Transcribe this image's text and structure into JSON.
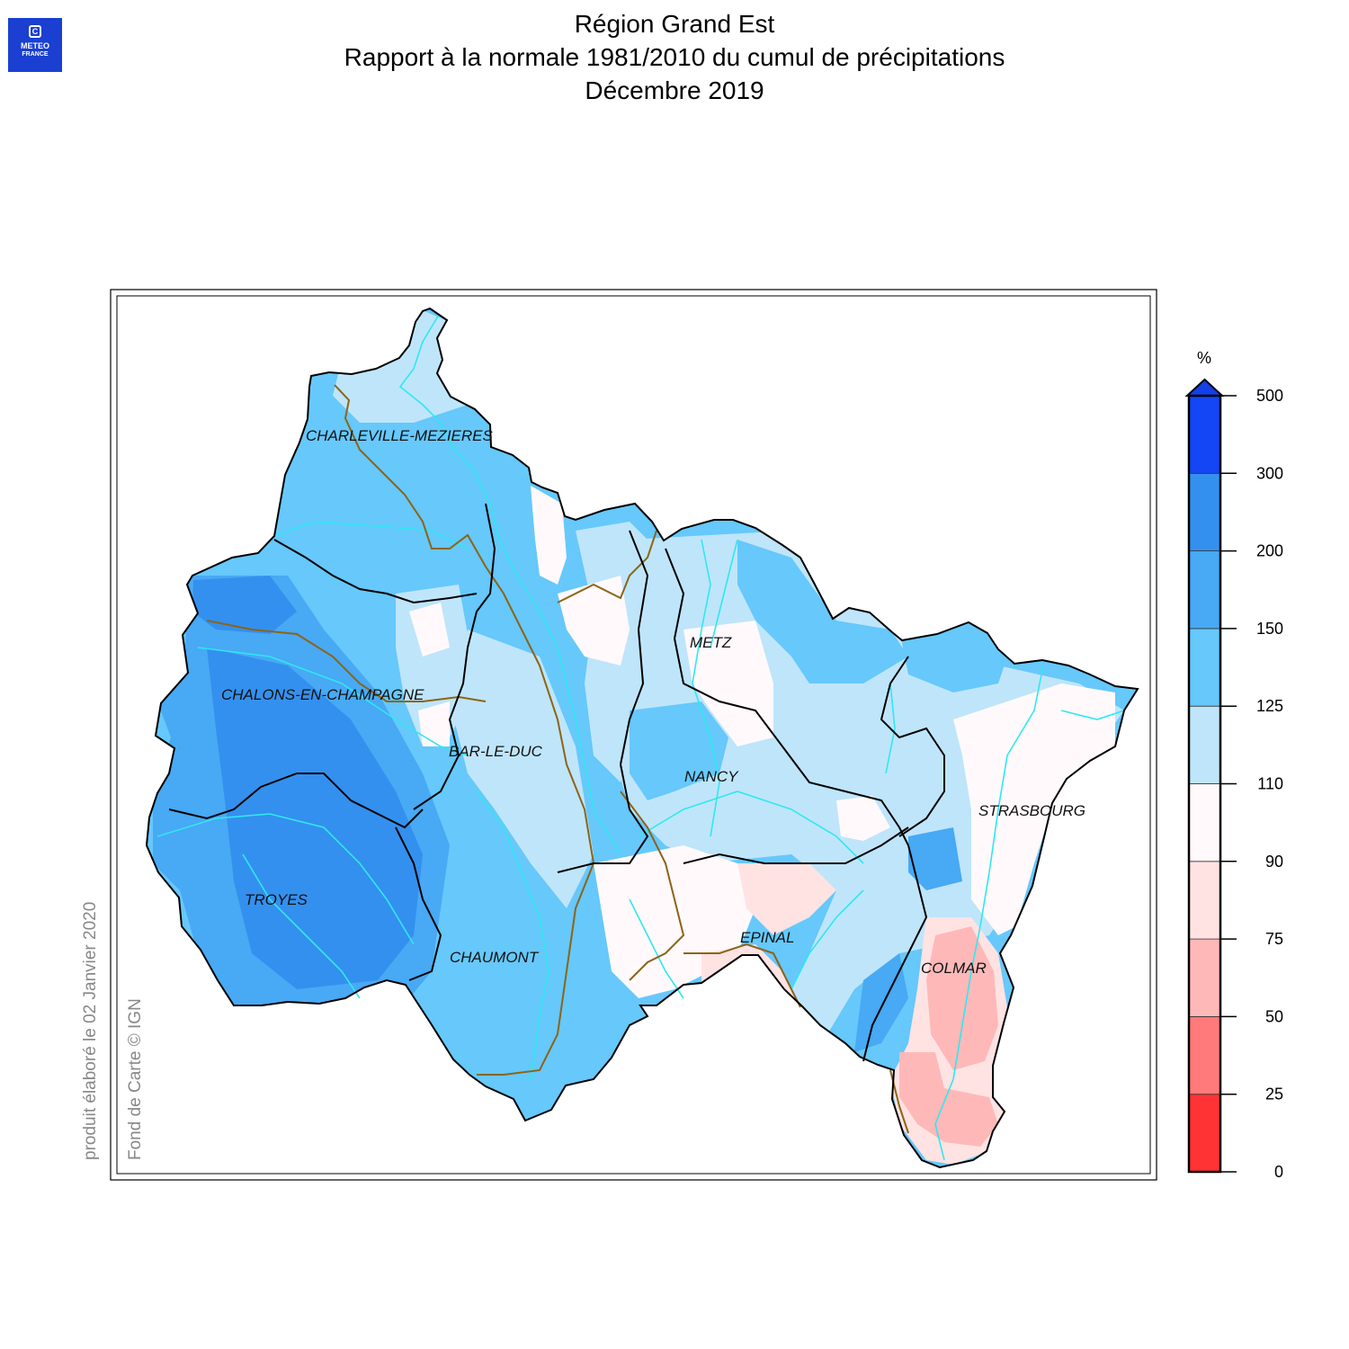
{
  "logo": {
    "line1": "METEO",
    "line2": "FRANCE"
  },
  "header": {
    "title": "Région Grand Est",
    "subtitle": "Rapport à la normale 1981/2010 du cumul de précipitations",
    "period": "Décembre 2019"
  },
  "credits": {
    "produced": "produit élaboré le 02 Janvier 2020",
    "basemap": "Fond de Carte © IGN"
  },
  "cities": [
    {
      "name": "CHARLEVILLE-MEZIERES"
    },
    {
      "name": "METZ"
    },
    {
      "name": "CHALONS-EN-CHAMPAGNE"
    },
    {
      "name": "BAR-LE-DUC"
    },
    {
      "name": "NANCY"
    },
    {
      "name": "STRASBOURG"
    },
    {
      "name": "TROYES"
    },
    {
      "name": "EPINAL"
    },
    {
      "name": "CHAUMONT"
    },
    {
      "name": "COLMAR"
    }
  ],
  "legend": {
    "unit": "%",
    "ticks": [
      "0",
      "25",
      "50",
      "75",
      "90",
      "110",
      "125",
      "150",
      "200",
      "300",
      "500"
    ],
    "bands": [
      {
        "from": 0,
        "to": 25,
        "color": "#ff3333"
      },
      {
        "from": 25,
        "to": 50,
        "color": "#ff7a7a"
      },
      {
        "from": 50,
        "to": 75,
        "color": "#ffb8b8"
      },
      {
        "from": 75,
        "to": 90,
        "color": "#ffe3e3"
      },
      {
        "from": 90,
        "to": 110,
        "color": "#fff9fc"
      },
      {
        "from": 110,
        "to": 125,
        "color": "#bfe5fa"
      },
      {
        "from": 125,
        "to": 150,
        "color": "#66c8fb"
      },
      {
        "from": 150,
        "to": 200,
        "color": "#48a9f4"
      },
      {
        "from": 200,
        "to": 300,
        "color": "#3490ee"
      },
      {
        "from": 300,
        "to": 500,
        "color": "#1446f5"
      },
      {
        "from": 500,
        "to": null,
        "color": "#1440e8"
      }
    ]
  },
  "map_colors": {
    "river": "#2ee8f0",
    "basin_border": "#8c6416",
    "department_border": "#000000"
  }
}
